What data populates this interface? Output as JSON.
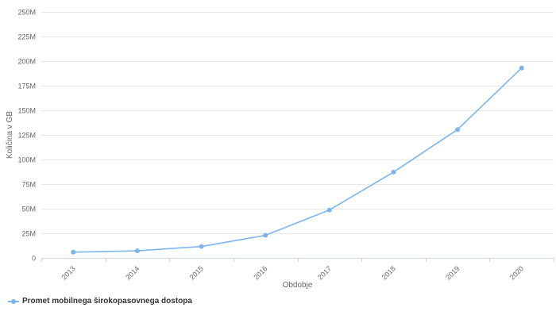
{
  "chart_data": {
    "type": "line",
    "categories": [
      "2013",
      "2014",
      "2015",
      "2016",
      "2017",
      "2018",
      "2019",
      "2020"
    ],
    "series": [
      {
        "name": "Promet mobilnega širokopasovnega dostopa",
        "values": [
          5800000,
          7200000,
          11600000,
          23000000,
          48700000,
          87200000,
          130500000,
          193000000
        ],
        "color": "#7cb5ec"
      }
    ],
    "xlabel": "Obdobje",
    "ylabel": "Količina v GB",
    "ylim": [
      0,
      250000000
    ],
    "yticks": [
      {
        "value": 0,
        "label": "0"
      },
      {
        "value": 25000000,
        "label": "25M"
      },
      {
        "value": 50000000,
        "label": "50M"
      },
      {
        "value": 75000000,
        "label": "75M"
      },
      {
        "value": 100000000,
        "label": "100M"
      },
      {
        "value": 125000000,
        "label": "125M"
      },
      {
        "value": 150000000,
        "label": "150M"
      },
      {
        "value": 175000000,
        "label": "175M"
      },
      {
        "value": 200000000,
        "label": "200M"
      },
      {
        "value": 225000000,
        "label": "225M"
      },
      {
        "value": 250000000,
        "label": "250M"
      }
    ],
    "grid": true,
    "legend_position": "bottom-left"
  },
  "legend": {
    "label": "Promet mobilnega širokopasovnega dostopa"
  }
}
